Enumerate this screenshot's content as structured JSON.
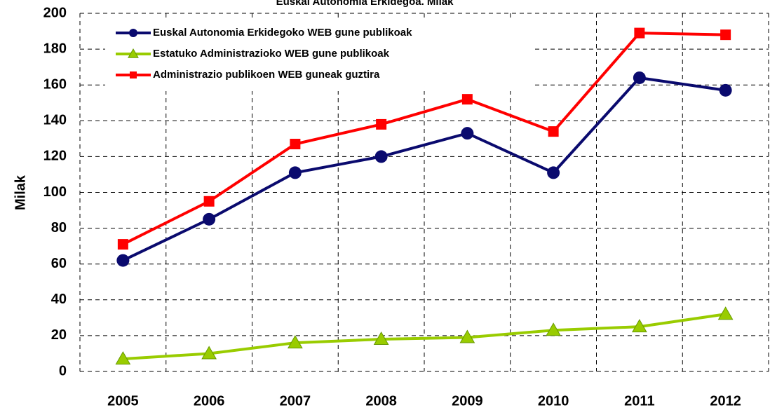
{
  "chart_data": {
    "type": "line",
    "title": "Euskal Autonomia Erkidegoa. Milak",
    "y_label": "Milak",
    "categories": [
      "2005",
      "2006",
      "2007",
      "2008",
      "2009",
      "2010",
      "2011",
      "2012"
    ],
    "series": [
      {
        "name": "Euskal Autonomia Erkidegoko WEB gune publikoak",
        "color": "#0a0a6e",
        "marker": "circle",
        "values": [
          62,
          85,
          111,
          120,
          133,
          111,
          164,
          157
        ]
      },
      {
        "name": "Estatuko Administrazioko WEB gune publikoak",
        "color": "#99cc00",
        "marker": "triangle",
        "values": [
          7,
          10,
          16,
          18,
          19,
          23,
          25,
          32
        ]
      },
      {
        "name": "Administrazio publikoen WEB guneak guztira",
        "color": "#ff0000",
        "marker": "square",
        "values": [
          71,
          95,
          127,
          138,
          152,
          134,
          189,
          188
        ]
      }
    ],
    "ylim": [
      0,
      200
    ],
    "yticks": [
      0,
      20,
      40,
      60,
      80,
      100,
      120,
      140,
      160,
      180,
      200
    ],
    "grid": true,
    "legend": "top-left"
  }
}
